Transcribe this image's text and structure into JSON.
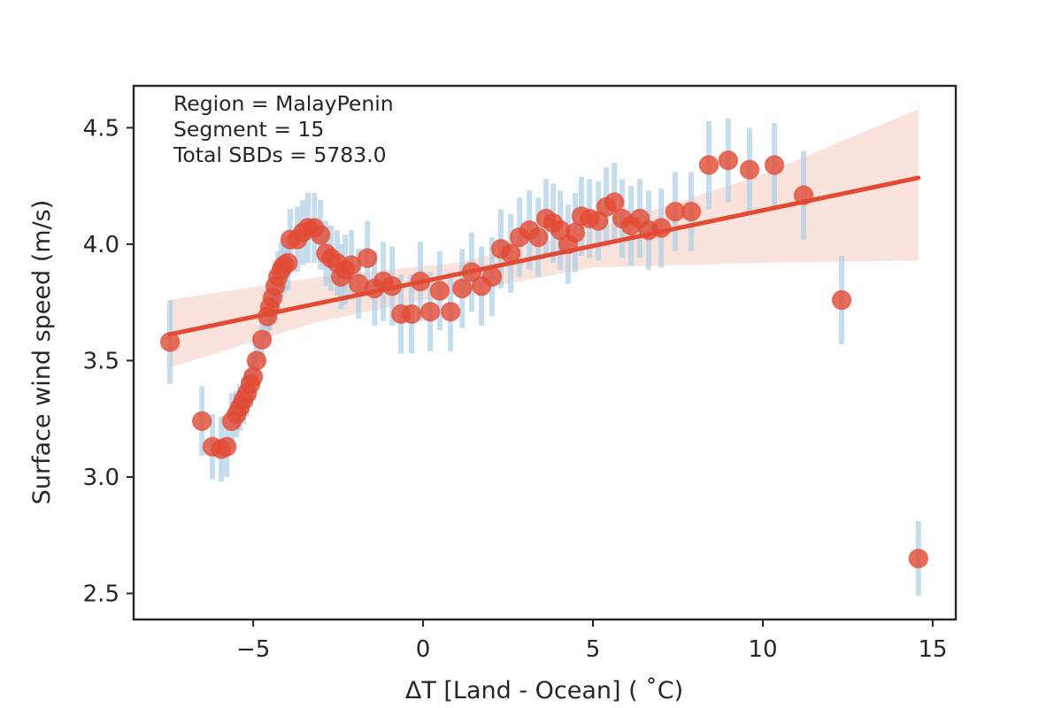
{
  "chart_data": {
    "type": "scatter",
    "title": "",
    "xlabel": "ΔT [Land - Ocean] ( ˚C)",
    "ylabel": "Surface wind speed (m/s)",
    "xlim": [
      -8.52,
      15.68
    ],
    "ylim": [
      2.388,
      4.68
    ],
    "xticks": [
      -5,
      0,
      5,
      10,
      15
    ],
    "xtick_labels": [
      "−5",
      "0",
      "5",
      "10",
      "15"
    ],
    "yticks": [
      2.5,
      3.0,
      3.5,
      4.0,
      4.5
    ],
    "ytick_labels": [
      "2.5",
      "3.0",
      "3.5",
      "4.0",
      "4.5"
    ],
    "grid": false,
    "annotations": [
      "Region = MalayPenin",
      "Segment = 15",
      "Total SBDs = 5783.0"
    ],
    "colors": {
      "points": "#e24a33",
      "regression_line": "#e24a33",
      "confidence_band": "#f9ddd7",
      "error_bars": "#a6cde6"
    },
    "series": [
      {
        "name": "binned means",
        "x": [
          -7.45,
          -6.51,
          -6.2,
          -5.94,
          -5.78,
          -5.63,
          -5.49,
          -5.39,
          -5.29,
          -5.18,
          -5.08,
          -5.0,
          -4.9,
          -4.74,
          -4.58,
          -4.51,
          -4.43,
          -4.35,
          -4.27,
          -4.17,
          -4.09,
          -3.98,
          -3.91,
          -3.7,
          -3.54,
          -3.39,
          -3.2,
          -3.02,
          -2.86,
          -2.71,
          -2.53,
          -2.42,
          -2.29,
          -2.11,
          -1.9,
          -1.64,
          -1.43,
          -1.17,
          -0.91,
          -0.65,
          -0.34,
          -0.08,
          0.21,
          0.49,
          0.81,
          1.15,
          1.43,
          1.72,
          2.03,
          2.29,
          2.58,
          2.84,
          3.13,
          3.39,
          3.62,
          3.83,
          4.04,
          4.27,
          4.48,
          4.66,
          4.9,
          5.16,
          5.39,
          5.63,
          5.86,
          6.12,
          6.38,
          6.64,
          7.01,
          7.42,
          7.89,
          8.41,
          8.98,
          9.61,
          10.34,
          11.2,
          12.32,
          14.58
        ],
        "y": [
          3.58,
          3.24,
          3.13,
          3.12,
          3.13,
          3.24,
          3.27,
          3.3,
          3.33,
          3.36,
          3.4,
          3.43,
          3.5,
          3.59,
          3.69,
          3.73,
          3.77,
          3.82,
          3.86,
          3.89,
          3.91,
          3.92,
          4.02,
          4.02,
          4.05,
          4.07,
          4.07,
          4.04,
          3.96,
          3.94,
          3.92,
          3.86,
          3.89,
          3.91,
          3.83,
          3.94,
          3.81,
          3.84,
          3.82,
          3.7,
          3.7,
          3.84,
          3.71,
          3.8,
          3.71,
          3.81,
          3.88,
          3.82,
          3.86,
          3.98,
          3.96,
          4.03,
          4.06,
          4.03,
          4.11,
          4.09,
          4.06,
          4.0,
          4.05,
          4.12,
          4.11,
          4.1,
          4.16,
          4.18,
          4.11,
          4.08,
          4.11,
          4.06,
          4.07,
          4.14,
          4.14,
          4.34,
          4.36,
          4.32,
          4.34,
          4.21,
          3.76,
          2.65
        ],
        "yerr": [
          0.18,
          0.15,
          0.14,
          0.14,
          0.13,
          0.12,
          0.1,
          0.1,
          0.1,
          0.1,
          0.1,
          0.1,
          0.1,
          0.1,
          0.1,
          0.1,
          0.11,
          0.11,
          0.11,
          0.12,
          0.12,
          0.12,
          0.13,
          0.14,
          0.14,
          0.15,
          0.15,
          0.15,
          0.14,
          0.14,
          0.14,
          0.14,
          0.15,
          0.15,
          0.15,
          0.16,
          0.16,
          0.17,
          0.17,
          0.17,
          0.17,
          0.17,
          0.17,
          0.17,
          0.17,
          0.17,
          0.17,
          0.17,
          0.17,
          0.17,
          0.17,
          0.17,
          0.17,
          0.17,
          0.17,
          0.17,
          0.17,
          0.17,
          0.17,
          0.17,
          0.17,
          0.17,
          0.17,
          0.17,
          0.17,
          0.17,
          0.17,
          0.17,
          0.17,
          0.17,
          0.17,
          0.19,
          0.18,
          0.18,
          0.18,
          0.19,
          0.19,
          0.16
        ]
      }
    ],
    "regression": {
      "x": [
        -7.47,
        14.58
      ],
      "y": [
        3.612,
        4.285
      ],
      "ci_upper": [
        [
          -7.47,
          3.76
        ],
        [
          -3.0,
          3.86
        ],
        [
          1.0,
          3.92
        ],
        [
          5.0,
          4.06
        ],
        [
          10.0,
          4.3
        ],
        [
          14.58,
          4.58
        ]
      ],
      "ci_lower": [
        [
          -7.47,
          3.47
        ],
        [
          -3.0,
          3.67
        ],
        [
          1.0,
          3.79
        ],
        [
          5.0,
          3.9
        ],
        [
          10.0,
          3.92
        ],
        [
          14.58,
          3.93
        ]
      ]
    }
  }
}
